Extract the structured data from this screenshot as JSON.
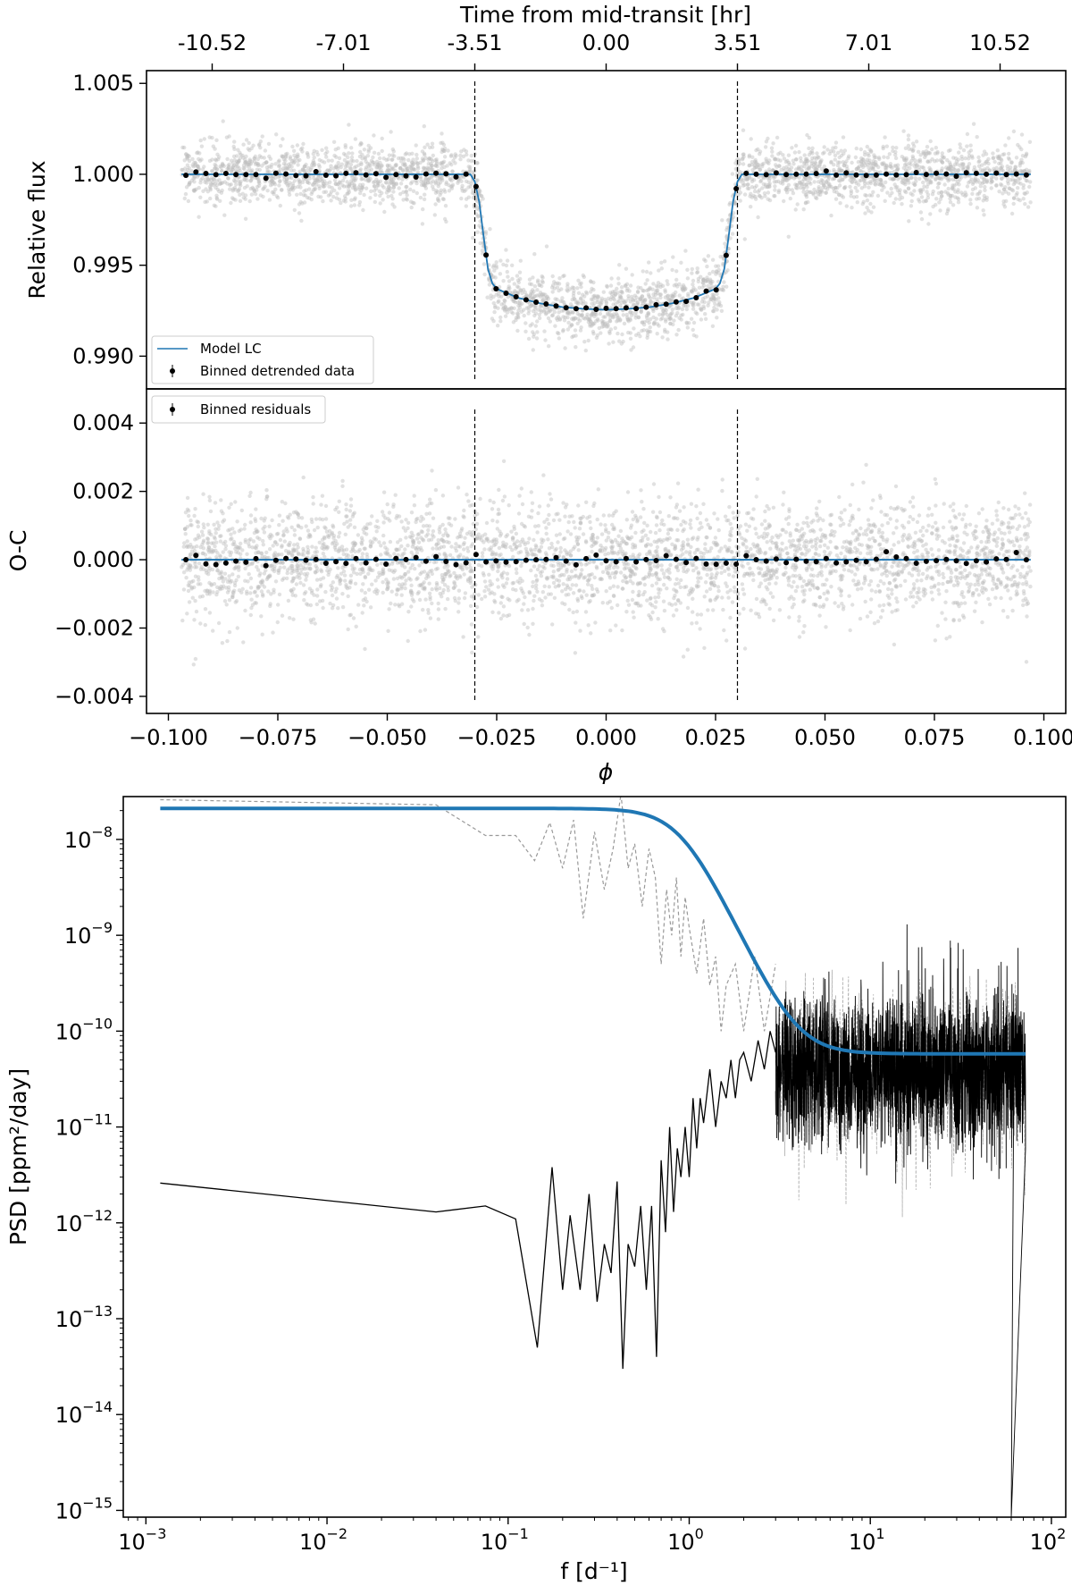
{
  "chart_data": [
    {
      "type": "scatter",
      "panel": "light-curve",
      "xlim": [
        -0.105,
        0.105
      ],
      "ylim": [
        0.9882,
        1.0057
      ],
      "ylabel": "Relative flux",
      "yticks": [
        0.99,
        0.995,
        1.0,
        1.005
      ],
      "ytick_labels": [
        "0.990",
        "0.995",
        "1.000",
        "1.005"
      ],
      "secondary_xlabel": "Time from mid-transit [hr]",
      "secondary_xticks": [
        -0.09,
        -0.06,
        -0.03,
        0.0,
        0.03,
        0.06,
        0.09
      ],
      "secondary_xtick_labels": [
        "-10.52",
        "-7.01",
        "-3.51",
        "0.00",
        "3.51",
        "7.01",
        "10.52"
      ],
      "vlines": [
        -0.03,
        0.03
      ],
      "raw_points": {
        "color": "#bdbdbd",
        "x_range": [
          -0.097,
          0.097
        ],
        "count": 3500
      },
      "model": {
        "name": "Model LC",
        "color": "#1f77b4",
        "x": [
          -0.097,
          -0.031,
          -0.03,
          -0.029,
          -0.028,
          -0.027,
          -0.026,
          -0.025,
          -0.02,
          -0.015,
          -0.01,
          -0.005,
          0.0,
          0.005,
          0.01,
          0.015,
          0.02,
          0.025,
          0.026,
          0.027,
          0.028,
          0.029,
          0.03,
          0.031,
          0.097
        ],
        "y": [
          1.0,
          1.0,
          0.9996,
          0.9985,
          0.9966,
          0.9948,
          0.994,
          0.9937,
          0.9932,
          0.9929,
          0.9927,
          0.9926,
          0.99255,
          0.9926,
          0.9927,
          0.9929,
          0.9932,
          0.9937,
          0.994,
          0.9948,
          0.9966,
          0.9985,
          0.9996,
          1.0,
          1.0
        ]
      },
      "binned": {
        "name": "Binned detrended data",
        "color": "#000000",
        "x_range": [
          -0.096,
          0.096
        ],
        "count": 85
      },
      "legend": "lower-left"
    },
    {
      "type": "scatter",
      "panel": "residuals",
      "xlim": [
        -0.105,
        0.105
      ],
      "ylim": [
        -0.0045,
        0.005
      ],
      "ylabel": "O-C",
      "xlabel": "ϕ",
      "yticks": [
        -0.004,
        -0.002,
        0.0,
        0.002,
        0.004
      ],
      "ytick_labels": [
        "−0.004",
        "−0.002",
        "0.000",
        "0.002",
        "0.004"
      ],
      "xticks": [
        -0.1,
        -0.075,
        -0.05,
        -0.025,
        0.0,
        0.025,
        0.05,
        0.075,
        0.1
      ],
      "xtick_labels": [
        "−0.100",
        "−0.075",
        "−0.050",
        "−0.025",
        "0.000",
        "0.025",
        "0.050",
        "0.075",
        "0.100"
      ],
      "vlines": [
        -0.03,
        0.03
      ],
      "raw_points": {
        "color": "#bdbdbd",
        "x_range": [
          -0.097,
          0.097
        ],
        "count": 3500
      },
      "zero_line": {
        "color": "#1f77b4",
        "y": 0
      },
      "binned": {
        "name": "Binned residuals",
        "color": "#000000",
        "x_range": [
          -0.096,
          0.096
        ],
        "count": 85
      },
      "legend": "upper-left"
    },
    {
      "type": "line",
      "panel": "psd",
      "xscale": "log",
      "yscale": "log",
      "xlim": [
        0.00075,
        120
      ],
      "ylim": [
        8.5e-16,
        2.8e-08
      ],
      "xlabel": "f [d⁻¹]",
      "ylabel": "PSD [ppm²/day]",
      "xticks": [
        0.001,
        0.01,
        0.1,
        1,
        10,
        100
      ],
      "xtick_labels": [
        {
          "base": "10",
          "exp": "−3"
        },
        {
          "base": "10",
          "exp": "−2"
        },
        {
          "base": "10",
          "exp": "−1"
        },
        {
          "base": "10",
          "exp": "0"
        },
        {
          "base": "10",
          "exp": "1"
        },
        {
          "base": "10",
          "exp": "2"
        }
      ],
      "yticks": [
        1e-15,
        1e-14,
        1e-13,
        1e-12,
        1e-11,
        1e-10,
        1e-09,
        1e-08
      ],
      "ytick_labels": [
        {
          "base": "10",
          "exp": "−15"
        },
        {
          "base": "10",
          "exp": "−14"
        },
        {
          "base": "10",
          "exp": "−13"
        },
        {
          "base": "10",
          "exp": "−12"
        },
        {
          "base": "10",
          "exp": "−11"
        },
        {
          "base": "10",
          "exp": "−10"
        },
        {
          "base": "10",
          "exp": "−9"
        },
        {
          "base": "10",
          "exp": "−8"
        }
      ],
      "series": [
        {
          "style": "dashed",
          "color": "#999999",
          "x": [
            0.0012,
            0.04,
            0.075,
            0.11,
            0.14,
            0.17,
            0.2,
            0.23,
            0.26,
            0.3,
            0.34,
            0.38,
            0.42,
            0.46,
            0.5,
            0.55,
            0.6,
            0.65,
            0.7,
            0.75,
            0.8,
            0.85,
            0.9,
            0.95,
            1.0,
            1.1,
            1.2,
            1.3,
            1.4,
            1.5,
            1.6,
            1.8,
            2.0,
            2.3,
            2.6,
            3.0
          ],
          "y": [
            2.6e-08,
            2.3e-08,
            1.1e-08,
            1.1e-08,
            6e-09,
            1.5e-08,
            5e-09,
            1.6e-08,
            1.5e-09,
            1.2e-08,
            3e-09,
            8e-09,
            3e-08,
            5e-09,
            9e-09,
            2e-09,
            8e-09,
            4e-09,
            5e-10,
            3e-09,
            1e-09,
            4e-09,
            6e-10,
            2.5e-09,
            1.2e-09,
            4e-10,
            1.5e-09,
            3e-10,
            6e-10,
            1e-10,
            3e-10,
            5e-10,
            1e-10,
            6e-10,
            1e-10,
            5e-10
          ]
        },
        {
          "style": "solid",
          "color": "#000000",
          "x": [
            0.0012,
            0.04,
            0.075,
            0.11,
            0.145,
            0.175,
            0.2,
            0.22,
            0.25,
            0.28,
            0.31,
            0.34,
            0.37,
            0.4,
            0.43,
            0.46,
            0.5,
            0.54,
            0.58,
            0.62,
            0.66,
            0.7,
            0.74,
            0.78,
            0.82,
            0.86,
            0.9,
            0.95,
            1.0,
            1.05,
            1.1,
            1.15,
            1.2,
            1.3,
            1.4,
            1.5,
            1.6,
            1.7,
            1.8,
            1.9,
            2.0,
            2.2,
            2.4,
            2.6,
            2.8,
            3.0
          ],
          "y": [
            2.6e-12,
            1.3e-12,
            1.5e-12,
            1.1e-12,
            5e-14,
            3.8e-12,
            2e-13,
            1.2e-12,
            2e-13,
            2e-12,
            1.5e-13,
            6e-13,
            3e-13,
            2.7e-12,
            3e-14,
            6e-13,
            3.5e-13,
            1.5e-12,
            2e-13,
            1.5e-12,
            4e-14,
            4.5e-12,
            8e-13,
            1e-11,
            1.3e-12,
            6e-12,
            3e-12,
            1e-11,
            3e-12,
            2e-11,
            6e-12,
            2e-11,
            1.1e-11,
            4e-11,
            1e-11,
            3e-11,
            2e-11,
            5e-11,
            2e-11,
            5e-11,
            6e-11,
            3e-11,
            8e-11,
            4e-11,
            1e-10,
            6e-11
          ]
        },
        {
          "style": "solid",
          "color": "#1f77b4",
          "model": "flat-plateau-knee-white",
          "plateau": 2.1e-08,
          "white": 5.8e-11,
          "knee": 0.9,
          "power": 4,
          "x_range": [
            0.0012,
            72
          ]
        }
      ],
      "noise_band": {
        "x_range": [
          3.0,
          72
        ],
        "median": 4e-11
      }
    }
  ]
}
